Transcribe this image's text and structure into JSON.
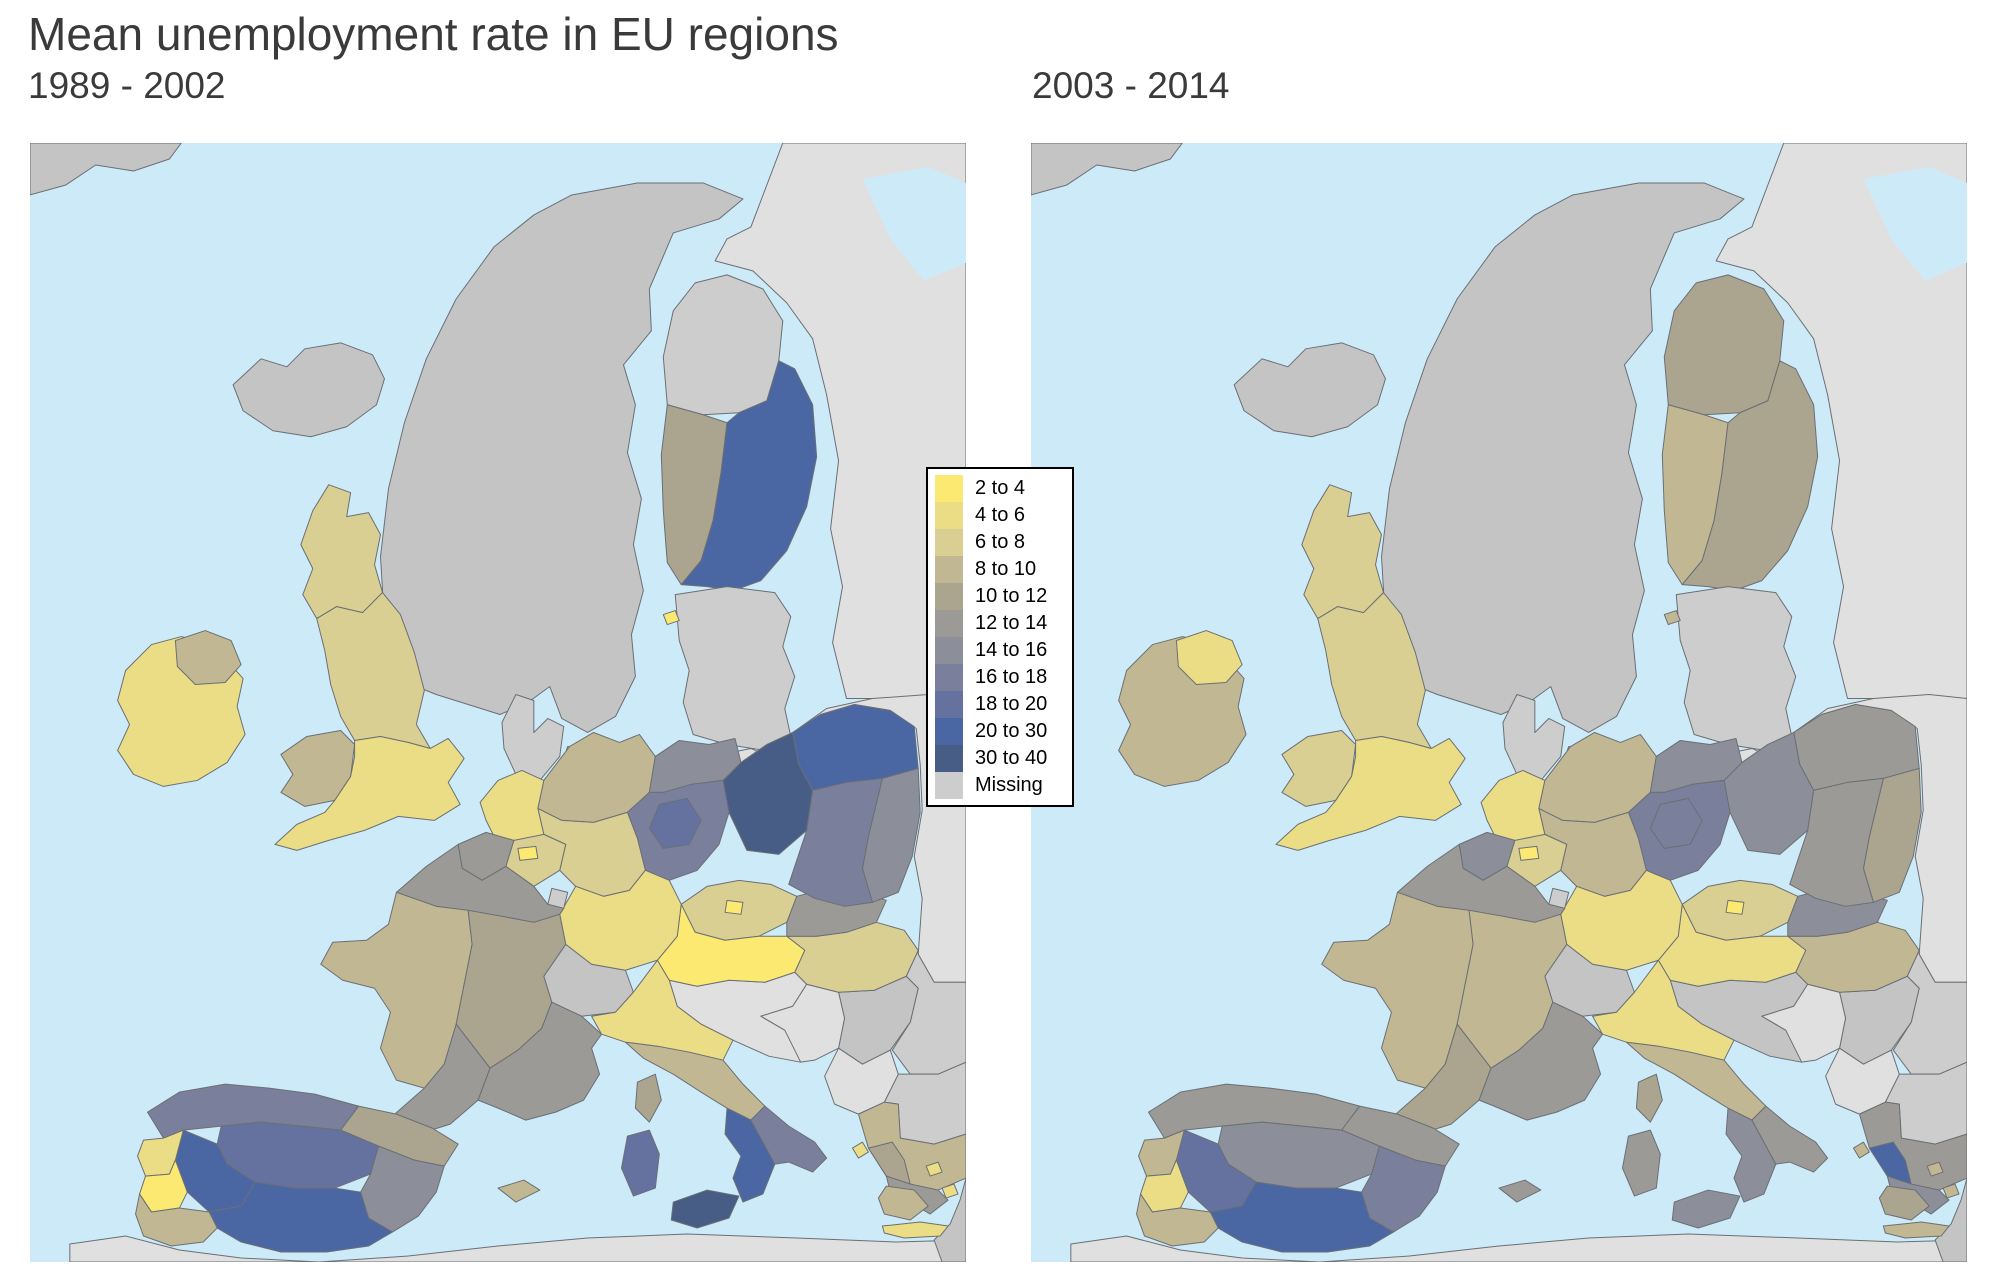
{
  "title": "Mean unemployment rate in EU regions",
  "panels": [
    {
      "label": "1989 - 2002",
      "period_key": "p1"
    },
    {
      "label": "2003 - 2014",
      "period_key": "p2"
    }
  ],
  "legend": {
    "items": [
      {
        "label": "2 to 4",
        "color": "#FBE972"
      },
      {
        "label": "4 to 6",
        "color": "#EBDD85"
      },
      {
        "label": "6 to 8",
        "color": "#D9CF92"
      },
      {
        "label": "8 to 10",
        "color": "#C1B893"
      },
      {
        "label": "10 to 12",
        "color": "#ABA48E"
      },
      {
        "label": "12 to 14",
        "color": "#9C9A96"
      },
      {
        "label": "14 to 16",
        "color": "#8C8E99"
      },
      {
        "label": "16 to 18",
        "color": "#7A809C"
      },
      {
        "label": "18 to 20",
        "color": "#65729F"
      },
      {
        "label": "20 to 30",
        "color": "#4B67A3"
      },
      {
        "label": "30 to 40",
        "color": "#485D85"
      },
      {
        "label": "Missing",
        "color": "#CDCDCD"
      }
    ]
  },
  "map_style": {
    "sea": "#CDEAF8",
    "non_eu": "#C4C4C4",
    "non_eu_light": "#E0E0E0",
    "border": "#6A6F74"
  },
  "regions": [
    {
      "id": "greenland",
      "name": "Greenland",
      "p1": "non_eu",
      "p2": "non_eu"
    },
    {
      "id": "russia-northwest",
      "name": "Russia (north-west)",
      "p1": "non_eu_light",
      "p2": "non_eu_light"
    },
    {
      "id": "white-sea",
      "name": "White Sea",
      "p1": "sea",
      "p2": "sea"
    },
    {
      "id": "eastern-europe",
      "name": "Belarus / Ukraine",
      "p1": "non_eu_light",
      "p2": "non_eu_light"
    },
    {
      "id": "scandinavia",
      "name": "Norway / Sweden",
      "p1": "non_eu",
      "p2": "non_eu"
    },
    {
      "id": "iceland",
      "name": "Iceland",
      "p1": "non_eu",
      "p2": "non_eu"
    },
    {
      "id": "faroe-islands",
      "name": "Faroe Islands",
      "p1": "non_eu",
      "p2": "non_eu"
    },
    {
      "id": "africa-north",
      "name": "North Africa",
      "p1": "non_eu_light",
      "p2": "non_eu_light"
    },
    {
      "id": "turkey",
      "name": "Turkey",
      "p1": "non_eu",
      "p2": "non_eu"
    },
    {
      "id": "finland-north",
      "name": "Finland (north)",
      "p1": "Missing",
      "p2": "10 to 12"
    },
    {
      "id": "finland-west",
      "name": "Finland (west)",
      "p1": "10 to 12",
      "p2": "8 to 10"
    },
    {
      "id": "finland-east",
      "name": "Finland (east)",
      "p1": "20 to 30",
      "p2": "10 to 12"
    },
    {
      "id": "baltic-states",
      "name": "Baltic states",
      "p1": "Missing",
      "p2": "Missing"
    },
    {
      "id": "kaliningrad",
      "name": "Kaliningrad",
      "p1": "non_eu_light",
      "p2": "non_eu_light"
    },
    {
      "id": "aland",
      "name": "Åland",
      "p1": "2 to 4",
      "p2": "8 to 10"
    },
    {
      "id": "denmark",
      "name": "Denmark",
      "p1": "Missing",
      "p2": "Missing"
    },
    {
      "id": "denmark-islands",
      "name": "Danish islands",
      "p1": "Missing",
      "p2": "Missing"
    },
    {
      "id": "romania",
      "name": "Romania",
      "p1": "Missing",
      "p2": "Missing"
    },
    {
      "id": "bulgaria",
      "name": "Bulgaria",
      "p1": "Missing",
      "p2": "Missing"
    },
    {
      "id": "serbia",
      "name": "Serbia",
      "p1": "non_eu",
      "p2": "non_eu"
    },
    {
      "id": "slovenia-croatia",
      "name": "Slovenia / Croatia",
      "p1": "non_eu_light",
      "p2": "non_eu"
    },
    {
      "id": "bosnia-montenegro",
      "name": "Bosnia / Montenegro",
      "p1": "non_eu_light",
      "p2": "non_eu_light"
    },
    {
      "id": "albania-macedonia",
      "name": "Albania / Macedonia",
      "p1": "non_eu_light",
      "p2": "non_eu_light"
    },
    {
      "id": "hungary",
      "name": "Hungary",
      "p1": "6 to 8",
      "p2": "8 to 10"
    },
    {
      "id": "slovakia",
      "name": "Slovakia",
      "p1": "12 to 14",
      "p2": "14 to 16"
    },
    {
      "id": "czechia",
      "name": "Czechia",
      "p1": "6 to 8",
      "p2": "6 to 8"
    },
    {
      "id": "prague",
      "name": "Prague",
      "p1": "2 to 4",
      "p2": "2 to 4"
    },
    {
      "id": "austria",
      "name": "Austria",
      "p1": "2 to 4",
      "p2": "4 to 6"
    },
    {
      "id": "switzerland",
      "name": "Switzerland",
      "p1": "non_eu",
      "p2": "non_eu"
    },
    {
      "id": "poland-north",
      "name": "Poland (north)",
      "p1": "20 to 30",
      "p2": "12 to 14"
    },
    {
      "id": "poland-west",
      "name": "Poland (west)",
      "p1": "30 to 40",
      "p2": "14 to 16"
    },
    {
      "id": "poland-east",
      "name": "Poland (east)",
      "p1": "14 to 16",
      "p2": "10 to 12"
    },
    {
      "id": "poland-south",
      "name": "Poland (south)",
      "p1": "16 to 18",
      "p2": "12 to 14"
    },
    {
      "id": "germany-north",
      "name": "Germany (north)",
      "p1": "8 to 10",
      "p2": "8 to 10"
    },
    {
      "id": "mecklenburg",
      "name": "Mecklenburg",
      "p1": "14 to 16",
      "p2": "14 to 16"
    },
    {
      "id": "germany-east",
      "name": "Germany (east)",
      "p1": "16 to 18",
      "p2": "16 to 18"
    },
    {
      "id": "saxony-anhalt",
      "name": "Saxony-Anhalt",
      "p1": "18 to 20",
      "p2": "16 to 18"
    },
    {
      "id": "germany-west",
      "name": "Germany (west)",
      "p1": "6 to 8",
      "p2": "8 to 10"
    },
    {
      "id": "germany-south",
      "name": "Germany (south)",
      "p1": "4 to 6",
      "p2": "4 to 6"
    },
    {
      "id": "netherlands",
      "name": "Netherlands",
      "p1": "4 to 6",
      "p2": "4 to 6"
    },
    {
      "id": "belgium-west",
      "name": "Belgium (west)",
      "p1": "12 to 14",
      "p2": "14 to 16"
    },
    {
      "id": "belgium-east",
      "name": "Belgium (east)",
      "p1": "6 to 8",
      "p2": "6 to 8"
    },
    {
      "id": "brussels",
      "name": "Brussels",
      "p1": "2 to 4",
      "p2": "2 to 4"
    },
    {
      "id": "luxembourg",
      "name": "Luxembourg",
      "p1": "Missing",
      "p2": "Missing"
    },
    {
      "id": "france-north",
      "name": "France (north)",
      "p1": "12 to 14",
      "p2": "12 to 14"
    },
    {
      "id": "france-west",
      "name": "France (west)",
      "p1": "8 to 10",
      "p2": "8 to 10"
    },
    {
      "id": "france-center",
      "name": "France (centre-east)",
      "p1": "10 to 12",
      "p2": "8 to 10"
    },
    {
      "id": "france-southwest",
      "name": "France (south-west)",
      "p1": "12 to 14",
      "p2": "10 to 12"
    },
    {
      "id": "france-southeast",
      "name": "France (south-east)",
      "p1": "12 to 14",
      "p2": "12 to 14"
    },
    {
      "id": "scotland",
      "name": "Scotland",
      "p1": "6 to 8",
      "p2": "6 to 8"
    },
    {
      "id": "england-north",
      "name": "England (north)",
      "p1": "6 to 8",
      "p2": "6 to 8"
    },
    {
      "id": "wales",
      "name": "Wales",
      "p1": "8 to 10",
      "p2": "6 to 8"
    },
    {
      "id": "england-south",
      "name": "England (south)",
      "p1": "4 to 6",
      "p2": "4 to 6"
    },
    {
      "id": "ireland",
      "name": "Ireland",
      "p1": "4 to 6",
      "p2": "8 to 10"
    },
    {
      "id": "northern-ireland",
      "name": "Northern Ireland",
      "p1": "8 to 10",
      "p2": "4 to 6"
    },
    {
      "id": "italy-north",
      "name": "Italy (north)",
      "p1": "4 to 6",
      "p2": "4 to 6"
    },
    {
      "id": "italy-center",
      "name": "Italy (centre)",
      "p1": "8 to 10",
      "p2": "8 to 10"
    },
    {
      "id": "campania-calabria",
      "name": "Campania / Calabria",
      "p1": "20 to 30",
      "p2": "14 to 16"
    },
    {
      "id": "puglia",
      "name": "Puglia",
      "p1": "16 to 18",
      "p2": "12 to 14"
    },
    {
      "id": "sicily",
      "name": "Sicily",
      "p1": "30 to 40",
      "p2": "14 to 16"
    },
    {
      "id": "sardinia",
      "name": "Sardinia",
      "p1": "18 to 20",
      "p2": "12 to 14"
    },
    {
      "id": "corsica",
      "name": "Corsica",
      "p1": "10 to 12",
      "p2": "10 to 12"
    },
    {
      "id": "spain-north",
      "name": "Spain (north)",
      "p1": "16 to 18",
      "p2": "12 to 14"
    },
    {
      "id": "spain-northeast",
      "name": "Spain (north-east)",
      "p1": "10 to 12",
      "p2": "12 to 14"
    },
    {
      "id": "spain-center",
      "name": "Spain (centre)",
      "p1": "18 to 20",
      "p2": "14 to 16"
    },
    {
      "id": "spain-east",
      "name": "Spain (east)",
      "p1": "14 to 16",
      "p2": "16 to 18"
    },
    {
      "id": "extremadura",
      "name": "Extremadura",
      "p1": "20 to 30",
      "p2": "18 to 20"
    },
    {
      "id": "andalusia",
      "name": "Andalusia",
      "p1": "20 to 30",
      "p2": "20 to 30"
    },
    {
      "id": "portugal-north",
      "name": "Portugal (north)",
      "p1": "4 to 6",
      "p2": "8 to 10"
    },
    {
      "id": "portugal-center",
      "name": "Portugal (centre)",
      "p1": "2 to 4",
      "p2": "4 to 6"
    },
    {
      "id": "portugal-south",
      "name": "Portugal (south)",
      "p1": "8 to 10",
      "p2": "8 to 10"
    },
    {
      "id": "balearic-islands",
      "name": "Balearic Islands",
      "p1": "8 to 10",
      "p2": "12 to 14"
    },
    {
      "id": "greece-north",
      "name": "Greece (north)",
      "p1": "8 to 10",
      "p2": "12 to 14"
    },
    {
      "id": "greece-macedonia",
      "name": "Greek Macedonia",
      "p1": "10 to 12",
      "p2": "20 to 30"
    },
    {
      "id": "greece-central",
      "name": "Greece (central)",
      "p1": "12 to 14",
      "p2": "14 to 16"
    },
    {
      "id": "peloponnese",
      "name": "Peloponnese",
      "p1": "8 to 10",
      "p2": "10 to 12"
    },
    {
      "id": "crete",
      "name": "Crete",
      "p1": "4 to 6",
      "p2": "8 to 10"
    },
    {
      "id": "aegean-islands",
      "name": "Aegean islands",
      "p1": "4 to 6",
      "p2": "8 to 10"
    },
    {
      "id": "aegean-islands-2",
      "name": "Aegean islands",
      "p1": "4 to 6",
      "p2": "8 to 10"
    },
    {
      "id": "corfu",
      "name": "Corfu",
      "p1": "4 to 6",
      "p2": "8 to 10"
    }
  ]
}
